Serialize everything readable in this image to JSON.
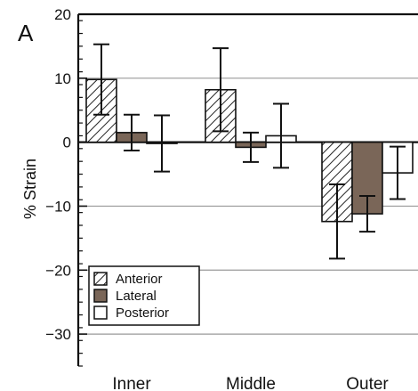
{
  "panel_label": "A",
  "chart_data": {
    "type": "bar",
    "ylabel": "% Strain",
    "xlabel": "",
    "categories": [
      "Inner",
      "Middle",
      "Outer"
    ],
    "ylim": [
      -35,
      20
    ],
    "yticks": [
      20,
      10,
      0,
      -10,
      -20,
      -30
    ],
    "grid": "horizontal",
    "legend_position": "bottom-left",
    "series": [
      {
        "name": "Anterior",
        "pattern": "hatched",
        "color": "#ffffff",
        "values": [
          9.8,
          8.2,
          -12.4
        ],
        "errors": [
          5.5,
          6.5,
          5.8
        ]
      },
      {
        "name": "Lateral",
        "pattern": "solid",
        "color": "#7a6658",
        "values": [
          1.5,
          -0.8,
          -11.2
        ],
        "errors": [
          2.8,
          2.3,
          2.8
        ]
      },
      {
        "name": "Posterior",
        "pattern": "solid",
        "color": "#ffffff",
        "values": [
          -0.2,
          1.0,
          -4.8
        ],
        "errors": [
          4.4,
          5.0,
          4.1
        ]
      }
    ]
  }
}
